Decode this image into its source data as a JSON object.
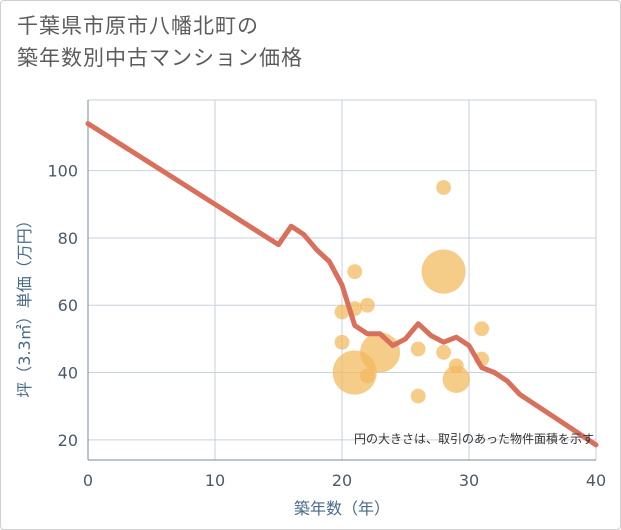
{
  "title_line1": "千葉県市原市八幡北町の",
  "title_line2": "築年数別中古マンション価格",
  "chart_data": {
    "type": "scatter",
    "title": "千葉県市原市八幡北町の築年数別中古マンション価格",
    "xlabel": "築年数（年）",
    "ylabel": "坪（3.3㎡）単価（万円）",
    "xlim": [
      0,
      40
    ],
    "ylim": [
      14,
      121
    ],
    "xticks": [
      0,
      10,
      20,
      30,
      40
    ],
    "yticks": [
      20,
      40,
      60,
      80,
      100
    ],
    "grid": true,
    "note": "円の大きさは、取引のあった物件面積を示す",
    "colors": {
      "bubble": "#f2b85c",
      "line": "#d9705c",
      "grid": "#c8d2dc"
    },
    "bubbles": [
      {
        "x": 20,
        "y": 58,
        "size": 2
      },
      {
        "x": 20,
        "y": 49,
        "size": 2
      },
      {
        "x": 21,
        "y": 70,
        "size": 2
      },
      {
        "x": 21,
        "y": 59,
        "size": 2
      },
      {
        "x": 21,
        "y": 40,
        "size": 9
      },
      {
        "x": 22,
        "y": 60,
        "size": 2
      },
      {
        "x": 22,
        "y": 39,
        "size": 2
      },
      {
        "x": 23,
        "y": 46,
        "size": 8
      },
      {
        "x": 26,
        "y": 47,
        "size": 2
      },
      {
        "x": 26,
        "y": 33,
        "size": 2
      },
      {
        "x": 28,
        "y": 95,
        "size": 2
      },
      {
        "x": 28,
        "y": 70,
        "size": 9
      },
      {
        "x": 28,
        "y": 46,
        "size": 2
      },
      {
        "x": 29,
        "y": 42,
        "size": 2
      },
      {
        "x": 29,
        "y": 38,
        "size": 5
      },
      {
        "x": 31,
        "y": 53,
        "size": 2
      },
      {
        "x": 31,
        "y": 44,
        "size": 2
      }
    ],
    "line": {
      "name": "trend",
      "x": [
        0,
        5,
        10,
        15,
        16,
        17,
        18,
        19,
        20,
        21,
        22,
        23,
        24,
        25,
        26,
        27,
        28,
        29,
        30,
        31,
        32,
        33,
        34,
        35,
        36,
        37,
        38,
        39,
        40
      ],
      "y": [
        114,
        102,
        90,
        78,
        83.5,
        81,
        76.5,
        73,
        66,
        54,
        51.5,
        51.5,
        48,
        50,
        54.5,
        51,
        49,
        50.5,
        48,
        41.5,
        40,
        37.5,
        33.5,
        31,
        28.5,
        26,
        23.5,
        21,
        18.5
      ]
    }
  }
}
